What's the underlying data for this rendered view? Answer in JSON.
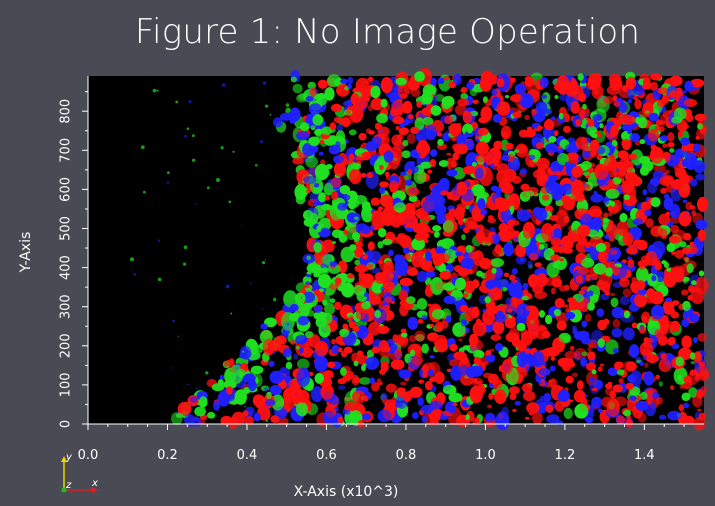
{
  "chart_data": {
    "type": "heatmap",
    "title": "Figure 1: No Image Operation",
    "xlabel": "X-Axis (x10^3)",
    "ylabel": "Y-Axis",
    "xlim": [
      0.0,
      1.55
    ],
    "ylim": [
      0,
      890
    ],
    "x_ticks": [
      "0.0",
      "0.2",
      "0.4",
      "0.6",
      "0.8",
      "1.0",
      "1.2",
      "1.4"
    ],
    "x_tick_values": [
      0.0,
      0.2,
      0.4,
      0.6,
      0.8,
      1.0,
      1.2,
      1.4
    ],
    "y_ticks": [
      "0",
      "100",
      "200",
      "300",
      "400",
      "500",
      "600",
      "700",
      "800"
    ],
    "y_tick_values": [
      0,
      100,
      200,
      300,
      400,
      500,
      600,
      700,
      800
    ],
    "channels": [
      {
        "name": "red",
        "color": "#ff1010"
      },
      {
        "name": "green",
        "color": "#20e020"
      },
      {
        "name": "blue",
        "color": "#2020ff"
      }
    ],
    "background_color": "#000000"
  },
  "orientation": {
    "y": "y",
    "z": "z",
    "x": "x"
  }
}
